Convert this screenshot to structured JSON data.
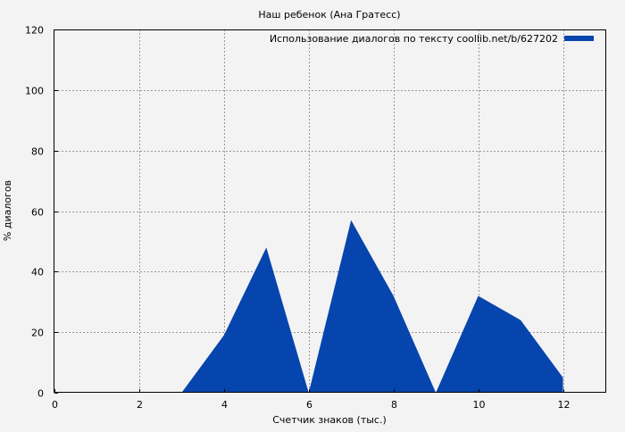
{
  "chart_data": {
    "type": "area",
    "title": "Наш ребенок (Ана Гратесс)",
    "xlabel": "Счетчик знаков (тыс.)",
    "ylabel": "% диалогов",
    "xlim": [
      0,
      13
    ],
    "ylim": [
      0,
      120
    ],
    "x_ticks": [
      0,
      2,
      4,
      6,
      8,
      10,
      12
    ],
    "y_ticks": [
      0,
      20,
      40,
      60,
      80,
      100,
      120
    ],
    "grid": true,
    "legend_position": "top-right",
    "series": [
      {
        "name": "Использование диалогов по тексту coollib.net/b/627202",
        "color": "#0645ad",
        "x": [
          0,
          1,
          2,
          3,
          4,
          5,
          6,
          7,
          8,
          9,
          10,
          11,
          12
        ],
        "y": [
          0,
          0,
          0,
          0,
          19,
          48,
          0,
          57,
          32,
          0,
          32,
          24,
          5
        ]
      }
    ]
  }
}
